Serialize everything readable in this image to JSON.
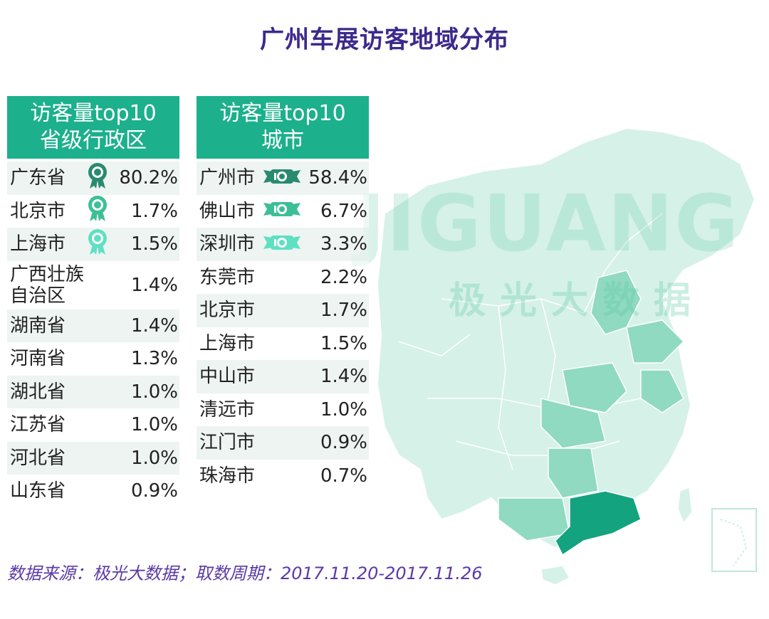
{
  "title": "广州车展访客地域分布",
  "watermark": {
    "brand": "JIGUANG",
    "sub": "极光大数据"
  },
  "provinces_panel": {
    "header_line1": "访客量top10",
    "header_line2": "省级行政区"
  },
  "cities_panel": {
    "header_line1": "访客量top10",
    "header_line2": "城市"
  },
  "source": "数据来源：极光大数据；取数周期：2017.11.20-2017.11.26",
  "colors": {
    "header": "#1cb08c",
    "title": "#3c2a8c",
    "map_light": "#d6f1e8",
    "map_mid": "#8fdac1",
    "map_dark": "#14a37f",
    "medal_gold": "#2a8a70",
    "medal_silver": "#3cbf97",
    "medal_bronze": "#5fe0c2"
  },
  "chart_data": [
    {
      "type": "table",
      "title": "访客量top10 省级行政区",
      "rows": [
        {
          "name": "广东省",
          "value": "80.2%",
          "medal": "medal-1-icon"
        },
        {
          "name": "北京市",
          "value": "1.7%",
          "medal": "medal-2-icon"
        },
        {
          "name": "上海市",
          "value": "1.5%",
          "medal": "medal-3-icon"
        },
        {
          "name": "广西壮族",
          "name2": "自治区",
          "value": "1.4%"
        },
        {
          "name": "湖南省",
          "value": "1.4%"
        },
        {
          "name": "河南省",
          "value": "1.3%"
        },
        {
          "name": "湖北省",
          "value": "1.0%"
        },
        {
          "name": "江苏省",
          "value": "1.0%"
        },
        {
          "name": "河北省",
          "value": "1.0%"
        },
        {
          "name": "山东省",
          "value": "0.9%"
        }
      ]
    },
    {
      "type": "table",
      "title": "访客量top10 城市",
      "rows": [
        {
          "name": "广州市",
          "value": "58.4%",
          "medal": "ribbon-1-icon"
        },
        {
          "name": "佛山市",
          "value": "6.7%",
          "medal": "ribbon-2-icon"
        },
        {
          "name": "深圳市",
          "value": "3.3%",
          "medal": "ribbon-3-icon"
        },
        {
          "name": "东莞市",
          "value": "2.2%"
        },
        {
          "name": "北京市",
          "value": "1.7%"
        },
        {
          "name": "上海市",
          "value": "1.5%"
        },
        {
          "name": "中山市",
          "value": "1.4%"
        },
        {
          "name": "清远市",
          "value": "1.0%"
        },
        {
          "name": "江门市",
          "value": "0.9%"
        },
        {
          "name": "珠海市",
          "value": "0.7%"
        }
      ]
    }
  ]
}
